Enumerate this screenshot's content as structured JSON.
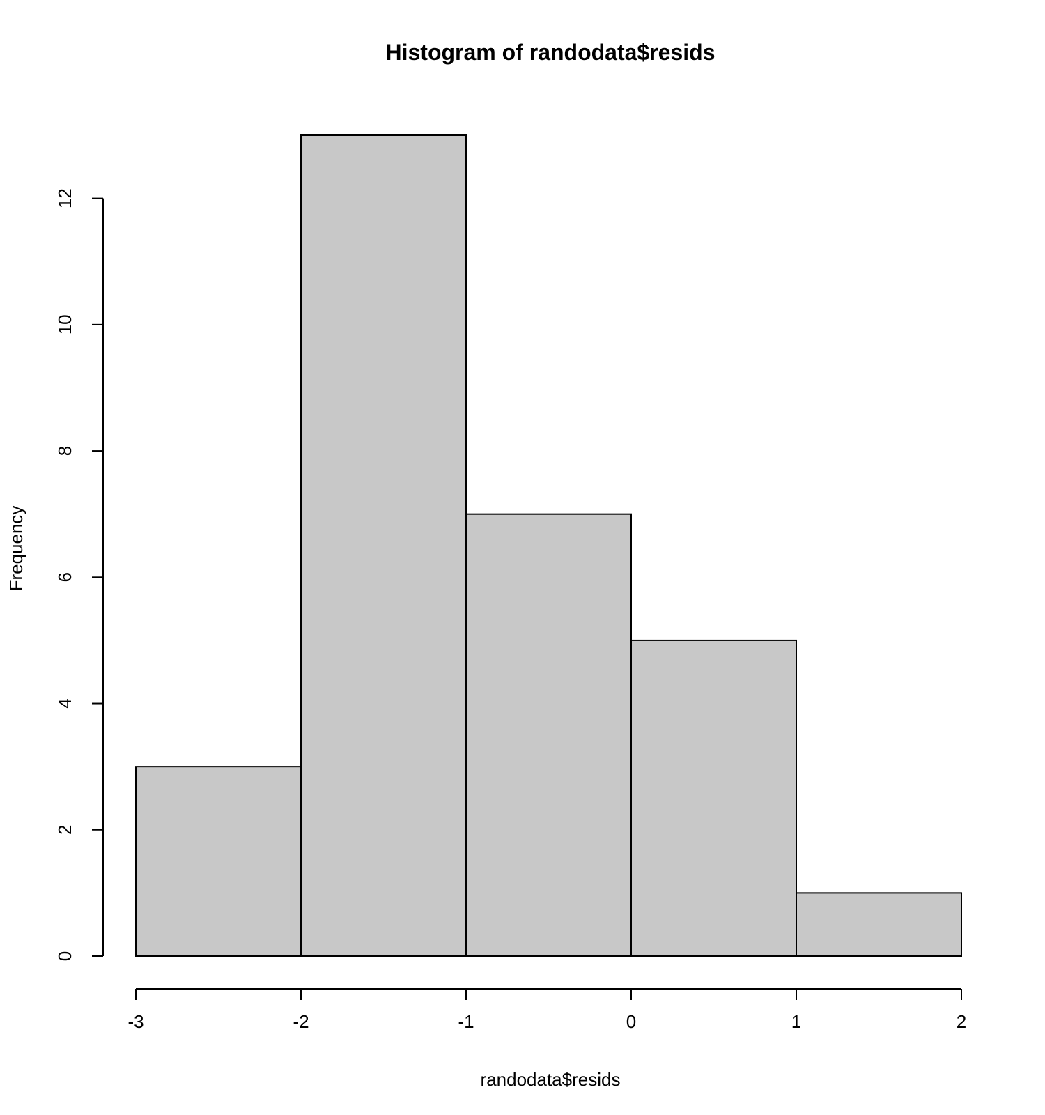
{
  "chart_data": {
    "type": "bar",
    "title": "Histogram of randodata$resids",
    "xlabel": "randodata$resids",
    "ylabel": "Frequency",
    "bins": [
      {
        "start": -3,
        "end": -2,
        "count": 3
      },
      {
        "start": -2,
        "end": -1,
        "count": 13
      },
      {
        "start": -1,
        "end": 0,
        "count": 7
      },
      {
        "start": 0,
        "end": 1,
        "count": 5
      },
      {
        "start": 1,
        "end": 2,
        "count": 1
      }
    ],
    "xlim": [
      -3,
      2
    ],
    "ylim": [
      0,
      13
    ],
    "x_ticks": [
      "-3",
      "-2",
      "-1",
      "0",
      "1",
      "2"
    ],
    "y_ticks": [
      "0",
      "2",
      "4",
      "6",
      "8",
      "10",
      "12"
    ],
    "grid": false,
    "bar_color": "#c8c8c8",
    "edge_color": "#000000"
  }
}
